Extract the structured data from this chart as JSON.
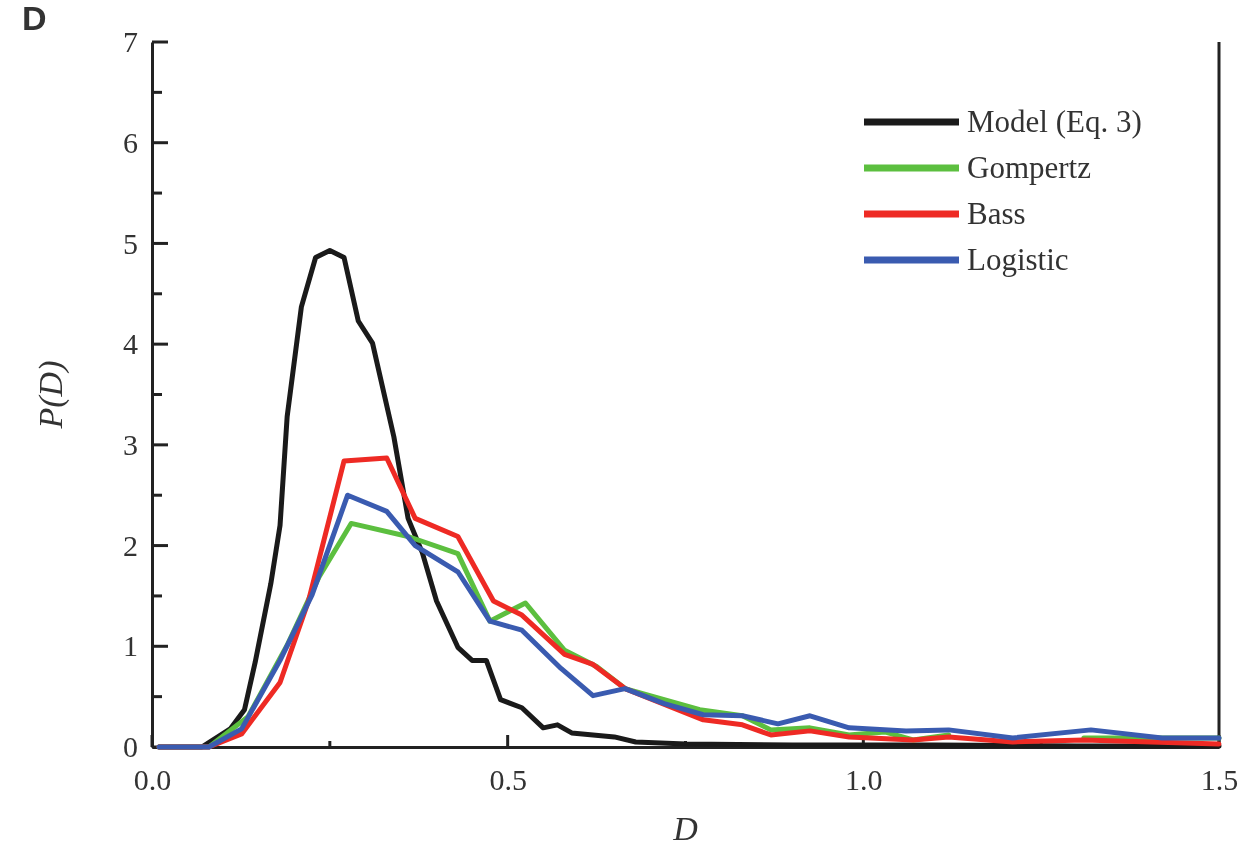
{
  "chart_data": {
    "type": "line",
    "title": "D",
    "xlabel": "D",
    "ylabel": "P(D)",
    "xlim": [
      0,
      1.5
    ],
    "ylim": [
      0,
      7
    ],
    "xticks": [
      {
        "value": 0,
        "label": "0.0"
      },
      {
        "value": 0.25,
        "label": null
      },
      0.5,
      {
        "value": 0.75,
        "label": null
      },
      {
        "value": 1,
        "label": "1.0"
      },
      {
        "value": 1.25,
        "label": null
      },
      1.5
    ],
    "yticks": [
      0,
      {
        "value": 0.5,
        "label": null
      },
      1,
      {
        "value": 1.5,
        "label": null
      },
      2,
      {
        "value": 2.5,
        "label": null
      },
      3,
      {
        "value": 3.5,
        "label": null
      },
      4,
      {
        "value": 4.5,
        "label": null
      },
      5,
      {
        "value": 5.5,
        "label": null
      },
      6,
      {
        "value": 6.5,
        "label": null
      },
      7
    ],
    "legend": "top right",
    "grid": false,
    "marker": "none",
    "line_style": "solid",
    "series": [
      {
        "name": "Model (Eq. 3)",
        "color": "#1a1a1a",
        "x": [
          0.01,
          0.07,
          0.11,
          0.13,
          0.145,
          0.167,
          0.18,
          0.19,
          0.21,
          0.23,
          0.25,
          0.27,
          0.29,
          0.31,
          0.34,
          0.36,
          0.38,
          0.4,
          0.43,
          0.45,
          0.47,
          0.49,
          0.52,
          0.55,
          0.57,
          0.59,
          0.65,
          0.68,
          0.75,
          0.9,
          1.1,
          1.3,
          1.5
        ],
        "values": [
          0,
          0,
          0.18,
          0.37,
          0.84,
          1.62,
          2.2,
          3.28,
          4.37,
          4.86,
          4.93,
          4.86,
          4.23,
          4.01,
          3.08,
          2.27,
          1.93,
          1.45,
          0.99,
          0.86,
          0.86,
          0.47,
          0.39,
          0.19,
          0.22,
          0.14,
          0.1,
          0.05,
          0.03,
          0.02,
          0.02,
          0.01,
          0.01
        ]
      },
      {
        "name": "Gompertz",
        "color": "#5cbf3f",
        "x": [
          0.01,
          0.08,
          0.135,
          0.19,
          0.235,
          0.28,
          0.36,
          0.43,
          0.475,
          0.525,
          0.58,
          0.625,
          0.665,
          0.77,
          0.83,
          0.87,
          0.925,
          0.98,
          1.03,
          1.07,
          1.12,
          1.21,
          1.31,
          1.5
        ],
        "values": [
          0,
          0,
          0.3,
          1.01,
          1.69,
          2.22,
          2.09,
          1.92,
          1.25,
          1.43,
          0.96,
          0.8,
          0.58,
          0.37,
          0.31,
          0.17,
          0.19,
          0.12,
          0.15,
          0.07,
          0.12,
          null,
          0.09,
          0.09
        ]
      },
      {
        "name": "Bass",
        "color": "#ee2a24",
        "x": [
          0.01,
          0.08,
          0.126,
          0.18,
          0.22,
          0.27,
          0.33,
          0.37,
          0.43,
          0.48,
          0.52,
          0.58,
          0.62,
          0.665,
          0.775,
          0.83,
          0.87,
          0.925,
          0.98,
          1.07,
          1.12,
          1.21,
          1.31,
          1.5
        ],
        "values": [
          0,
          0,
          0.13,
          0.64,
          1.45,
          2.84,
          2.87,
          2.27,
          2.09,
          1.45,
          1.31,
          0.92,
          0.82,
          0.58,
          0.27,
          0.22,
          0.12,
          0.16,
          0.1,
          0.07,
          0.1,
          0.05,
          0.07,
          0.03
        ]
      },
      {
        "name": "Logistic",
        "color": "#3a5bb0",
        "x": [
          0.01,
          0.08,
          0.126,
          0.18,
          0.225,
          0.275,
          0.33,
          0.37,
          0.43,
          0.475,
          0.52,
          0.575,
          0.62,
          0.665,
          0.72,
          0.775,
          0.83,
          0.88,
          0.925,
          0.98,
          1.06,
          1.12,
          1.21,
          1.32,
          1.42,
          1.5
        ],
        "values": [
          0,
          0,
          0.18,
          0.86,
          1.51,
          2.5,
          2.34,
          2,
          1.74,
          1.25,
          1.16,
          0.78,
          0.51,
          0.58,
          0.43,
          0.32,
          0.31,
          0.23,
          0.31,
          0.19,
          0.16,
          0.17,
          0.09,
          0.17,
          0.09,
          0.09
        ]
      }
    ]
  }
}
